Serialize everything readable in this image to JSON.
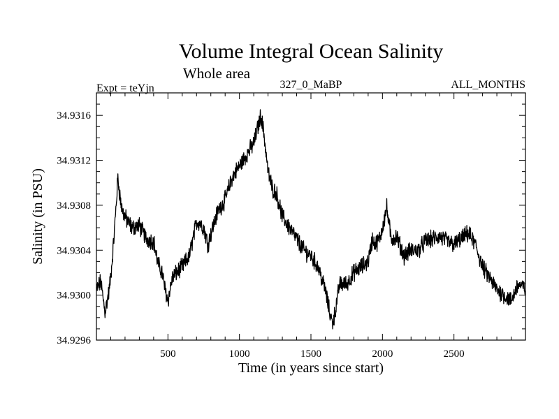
{
  "chart_data": {
    "type": "line",
    "title": "Volume Integral Ocean Salinity",
    "subtitle": "Whole area",
    "experiment_label": "Expt = teYjn",
    "period_label": "327_0_MaBP",
    "months_label": "ALL_MONTHS",
    "xlabel": "Time (in years since start)",
    "ylabel": "Salinity (in PSU)",
    "xlim": [
      0,
      3000
    ],
    "ylim": [
      34.9296,
      34.9318
    ],
    "x_ticks": [
      500,
      1000,
      1500,
      2000,
      2500
    ],
    "y_ticks": [
      34.9296,
      34.93,
      34.9304,
      34.9308,
      34.9312,
      34.9316
    ],
    "y_tick_labels": [
      "34.9296",
      "34.9300",
      "34.9304",
      "34.9308",
      "34.9312",
      "34.9316"
    ],
    "series": [
      {
        "name": "Salinity",
        "color": "#000000",
        "x": [
          0,
          30,
          60,
          90,
          110,
          130,
          150,
          170,
          190,
          220,
          250,
          300,
          350,
          400,
          430,
          460,
          480,
          500,
          530,
          560,
          600,
          650,
          700,
          720,
          750,
          780,
          800,
          850,
          900,
          950,
          1000,
          1050,
          1100,
          1130,
          1150,
          1170,
          1200,
          1230,
          1260,
          1300,
          1350,
          1400,
          1450,
          1500,
          1550,
          1600,
          1630,
          1650,
          1670,
          1700,
          1750,
          1800,
          1850,
          1900,
          1930,
          1950,
          1980,
          2000,
          2030,
          2060,
          2100,
          2150,
          2200,
          2250,
          2300,
          2350,
          2400,
          2450,
          2500,
          2550,
          2600,
          2650,
          2700,
          2750,
          2800,
          2850,
          2900,
          2950,
          3000
        ],
        "y": [
          34.93005,
          34.93012,
          34.92985,
          34.93005,
          34.9303,
          34.93065,
          34.93105,
          34.93082,
          34.93072,
          34.93065,
          34.9306,
          34.93062,
          34.9305,
          34.93048,
          34.93028,
          34.9302,
          34.93005,
          34.92995,
          34.93015,
          34.9302,
          34.93025,
          34.93035,
          34.93065,
          34.93065,
          34.9306,
          34.93045,
          34.93055,
          34.93075,
          34.93085,
          34.93105,
          34.93115,
          34.93125,
          34.93135,
          34.9315,
          34.9316,
          34.93145,
          34.9311,
          34.93095,
          34.9309,
          34.9307,
          34.9306,
          34.9305,
          34.9304,
          34.93035,
          34.93025,
          34.93005,
          34.92985,
          34.92975,
          34.92985,
          34.9301,
          34.9301,
          34.9302,
          34.93025,
          34.9303,
          34.9305,
          34.93045,
          34.9305,
          34.9306,
          34.93078,
          34.9305,
          34.93052,
          34.93035,
          34.9304,
          34.9304,
          34.93048,
          34.9305,
          34.93052,
          34.93048,
          34.93045,
          34.9305,
          34.93055,
          34.93045,
          34.93025,
          34.93015,
          34.93005,
          34.93,
          34.92995,
          34.9301,
          34.93005
        ]
      }
    ]
  }
}
